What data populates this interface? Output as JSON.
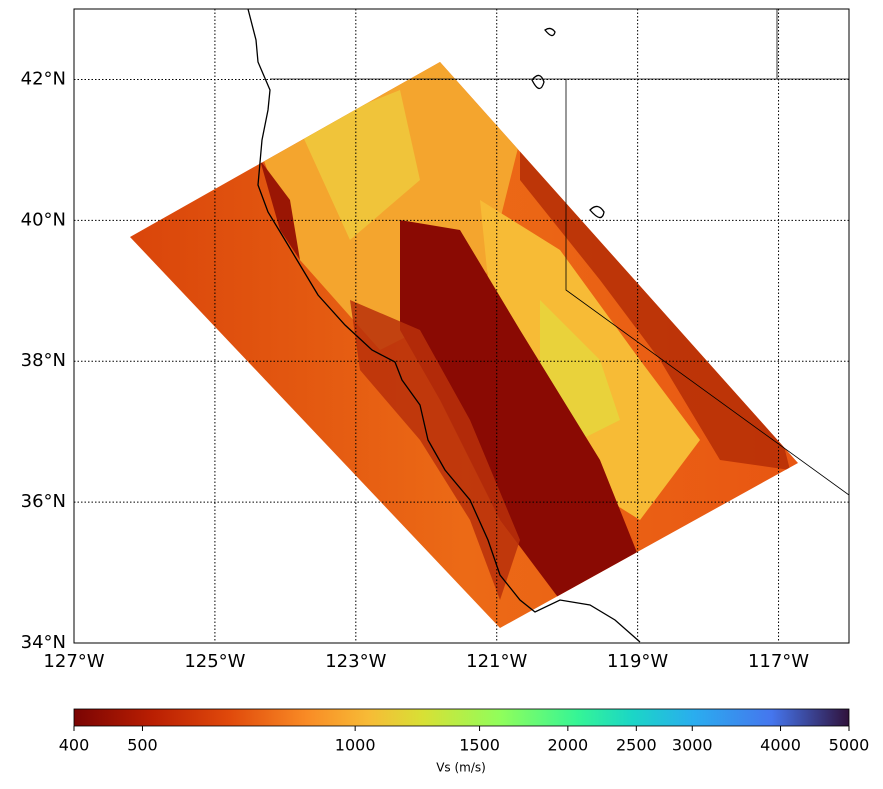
{
  "map": {
    "xlim": [
      -127,
      -116
    ],
    "ylim": [
      34,
      43
    ],
    "xticks": [
      {
        "value": -127,
        "label": "127°W"
      },
      {
        "value": -125,
        "label": "125°W"
      },
      {
        "value": -123,
        "label": "123°W"
      },
      {
        "value": -121,
        "label": "121°W"
      },
      {
        "value": -119,
        "label": "119°W"
      },
      {
        "value": -117,
        "label": "117°W"
      }
    ],
    "yticks": [
      {
        "value": 34,
        "label": "34°N"
      },
      {
        "value": 36,
        "label": "36°N"
      },
      {
        "value": 38,
        "label": "38°N"
      },
      {
        "value": 40,
        "label": "40°N"
      },
      {
        "value": 42,
        "label": "42°N"
      }
    ],
    "grid": true
  },
  "colorbar": {
    "label": "Vs (m/s)",
    "scale": "log",
    "lim": [
      400,
      5000
    ],
    "ticks": [
      400,
      500,
      1000,
      1500,
      2000,
      2500,
      3000,
      4000,
      5000
    ]
  }
}
